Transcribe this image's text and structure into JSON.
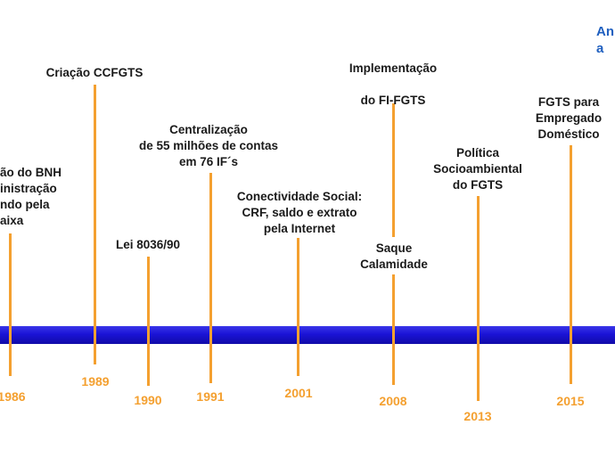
{
  "colors": {
    "bar": "#1a13d6",
    "tick": "#f4a030",
    "year": "#f4a030",
    "label": "#1a1a1a",
    "corner": "#1f5fbf"
  },
  "events": [
    {
      "id": "1986",
      "year": "1986",
      "label": "ão do BNH\ninistração\nndo pela\naixa"
    },
    {
      "id": "1989",
      "year": "1989",
      "label": "Criação CCFGTS"
    },
    {
      "id": "1990",
      "year": "1990",
      "label": "Lei 8036/90"
    },
    {
      "id": "1991",
      "year": "1991",
      "label": "Centralização\nde 55 milhões de contas\nem 76 IF´s"
    },
    {
      "id": "2001",
      "year": "2001",
      "label": "Conectividade Social:\nCRF, saldo e extrato\npela Internet"
    },
    {
      "id": "2008a",
      "year": "2008",
      "label": "Implementação\n\ndo FI-FGTS"
    },
    {
      "id": "2008b",
      "year": "",
      "label": "Saque\nCalamidade"
    },
    {
      "id": "2013",
      "year": "2013",
      "label": "Política\nSocioambiental\ndo FGTS"
    },
    {
      "id": "2015",
      "year": "2015",
      "label": "FGTS para\nEmpregado\nDoméstico"
    }
  ],
  "corner_text": "An\na"
}
